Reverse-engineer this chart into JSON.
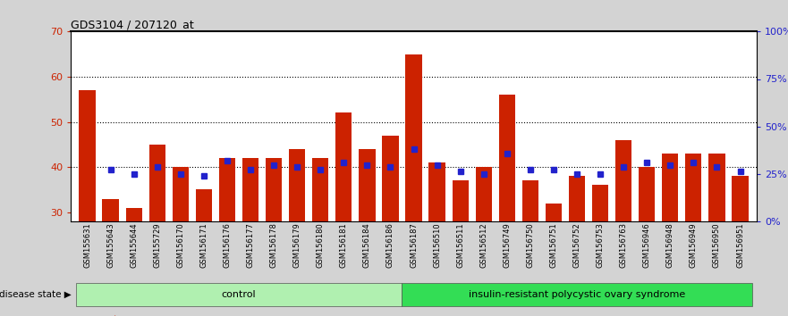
{
  "title": "GDS3104 / 207120_at",
  "samples": [
    "GSM155631",
    "GSM155643",
    "GSM155644",
    "GSM155729",
    "GSM156170",
    "GSM156171",
    "GSM156176",
    "GSM156177",
    "GSM156178",
    "GSM156179",
    "GSM156180",
    "GSM156181",
    "GSM156184",
    "GSM156186",
    "GSM156187",
    "GSM156510",
    "GSM156511",
    "GSM156512",
    "GSM156749",
    "GSM156750",
    "GSM156751",
    "GSM156752",
    "GSM156753",
    "GSM156763",
    "GSM156946",
    "GSM156948",
    "GSM156949",
    "GSM156950",
    "GSM156951"
  ],
  "counts": [
    57,
    33,
    31,
    45,
    40,
    35,
    42,
    42,
    42,
    44,
    42,
    52,
    44,
    47,
    65,
    41,
    37,
    40,
    56,
    37,
    32,
    38,
    36,
    46,
    40,
    43,
    43,
    43,
    38
  ],
  "percentile_ranks_y": [
    null,
    39.5,
    38.5,
    40.0,
    38.5,
    38.0,
    41.5,
    39.5,
    40.5,
    40.0,
    39.5,
    41.0,
    40.5,
    40.0,
    44.0,
    40.5,
    39.0,
    38.5,
    43.0,
    39.5,
    39.5,
    38.5,
    38.5,
    40.0,
    41.0,
    40.5,
    41.0,
    40.0,
    39.0
  ],
  "n_control": 14,
  "bar_color": "#cc2200",
  "dot_color": "#2222cc",
  "ylim_left": [
    28,
    70
  ],
  "ylim_right": [
    0,
    100
  ],
  "yticks_left": [
    30,
    40,
    50,
    60,
    70
  ],
  "yticks_right": [
    0,
    25,
    50,
    75,
    100
  ],
  "ytick_labels_right": [
    "0%",
    "25%",
    "50%",
    "75%",
    "100%"
  ],
  "hlines": [
    40,
    50,
    60
  ],
  "ctrl_color": "#b0f0b0",
  "pcos_color": "#33dd55",
  "bg_color": "#d3d3d3",
  "plot_bg": "#ffffff",
  "xtick_bg": "#d3d3d3"
}
